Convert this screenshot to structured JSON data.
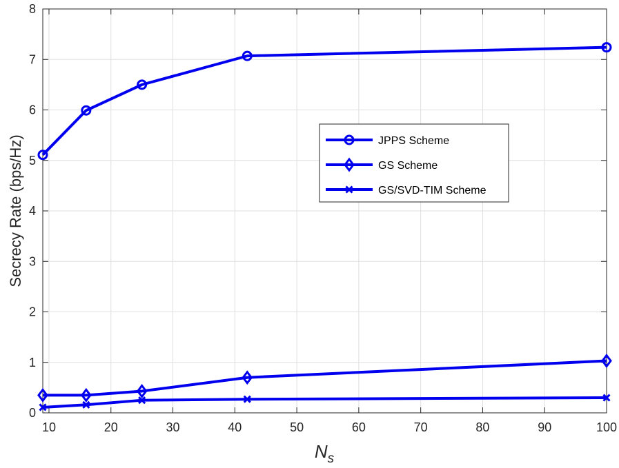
{
  "chart_data": {
    "type": "line",
    "xlabel": "N",
    "xlabel_sub": "s",
    "ylabel": "Secrecy Rate (bps/Hz)",
    "xlim": [
      9,
      100
    ],
    "ylim": [
      0,
      8
    ],
    "xticks": [
      10,
      20,
      30,
      40,
      50,
      60,
      70,
      80,
      90,
      100
    ],
    "yticks": [
      0,
      1,
      2,
      3,
      4,
      5,
      6,
      7,
      8
    ],
    "grid": true,
    "legend_position": "center-right",
    "line_color": "#0000ee",
    "x": [
      9,
      16,
      25,
      42,
      100
    ],
    "series": [
      {
        "name": "JPPS Scheme",
        "marker": "circle",
        "values": [
          5.11,
          5.99,
          6.5,
          7.07,
          7.24
        ]
      },
      {
        "name": "GS Scheme",
        "marker": "diamond",
        "values": [
          0.35,
          0.35,
          0.43,
          0.7,
          1.03
        ]
      },
      {
        "name": "GS/SVD-TIM Scheme",
        "marker": "x",
        "values": [
          0.11,
          0.16,
          0.25,
          0.27,
          0.3
        ]
      }
    ]
  }
}
